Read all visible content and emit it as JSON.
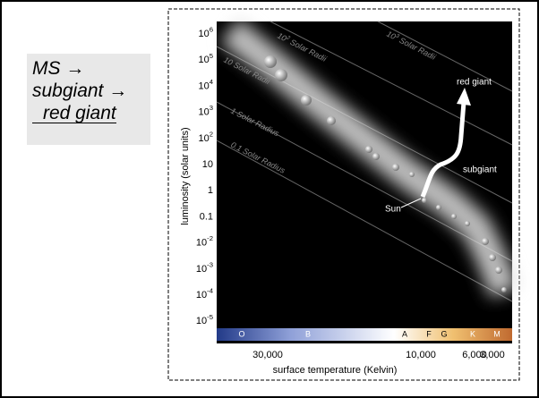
{
  "slide_text": [
    "MS →",
    "subgiant →",
    "red giant"
  ],
  "figure": {
    "y_axis_label": "luminosity (solar units)",
    "x_axis_label": "surface temperature (Kelvin)",
    "y_ticks": [
      {
        "text": "10",
        "sup": "6"
      },
      {
        "text": "10",
        "sup": "5"
      },
      {
        "text": "10",
        "sup": "4"
      },
      {
        "text": "10",
        "sup": "3"
      },
      {
        "text": "10",
        "sup": "2"
      },
      {
        "text": "10"
      },
      {
        "text": "1"
      },
      {
        "text": "0.1"
      },
      {
        "text": "10",
        "sup": "-2"
      },
      {
        "text": "10",
        "sup": "-3"
      },
      {
        "text": "10",
        "sup": "-4"
      },
      {
        "text": "10",
        "sup": "-5"
      }
    ],
    "x_ticks": [
      "30,000",
      "10,000",
      "6,000",
      "3,000"
    ],
    "spectral_classes": [
      "O",
      "B",
      "A",
      "F",
      "G",
      "K",
      "M"
    ],
    "radius_labels": [
      {
        "text": "10",
        "sup": "3",
        "post": " Solar Radii"
      },
      {
        "text": "10",
        "sup": "2",
        "post": " Solar Radii"
      },
      {
        "text": "10 Solar Radii"
      },
      {
        "text": "1 Solar Radius"
      },
      {
        "text": "0.1 Solar Radius"
      }
    ],
    "annotations": {
      "red_giant": "red giant",
      "subgiant": "subgiant",
      "sun": "Sun"
    }
  }
}
